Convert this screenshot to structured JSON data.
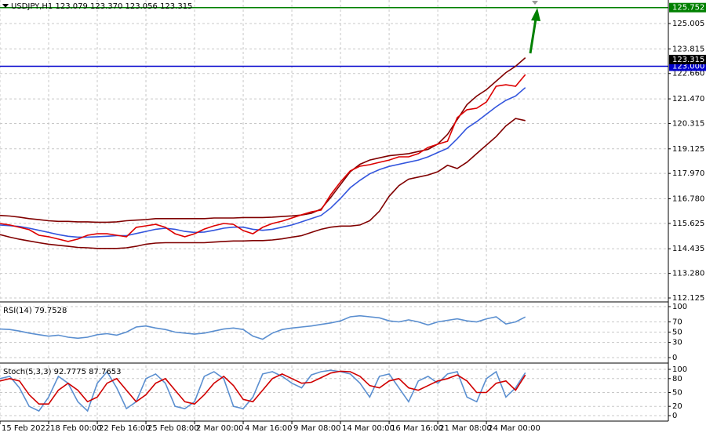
{
  "chart_data": [
    {
      "type": "line",
      "title": "USDJPY,H1 123.079 123.370 123.056 123.315",
      "x": [
        0,
        1,
        2,
        3,
        4,
        5,
        6,
        7,
        8,
        9,
        10,
        11,
        12,
        13,
        14,
        15,
        16,
        17,
        18,
        19,
        20,
        21,
        22,
        23,
        24,
        25,
        26,
        27,
        28,
        29,
        30,
        31,
        32,
        33,
        34,
        35,
        36,
        37,
        38,
        39,
        40,
        41,
        42,
        43,
        44,
        45,
        46,
        47,
        48,
        49,
        50,
        51,
        52,
        53,
        54
      ],
      "xlim": [
        0,
        68.7
      ],
      "xticks": [
        {
          "value": 0,
          "label": "15 Feb 2022"
        },
        {
          "value": 5,
          "label": "18 Feb 00:00"
        },
        {
          "value": 10,
          "label": "22 Feb 16:00"
        },
        {
          "value": 15,
          "label": "25 Feb 08:00"
        },
        {
          "value": 20,
          "label": "2 Mar 00:00"
        },
        {
          "value": 25,
          "label": "4 Mar 16:00"
        },
        {
          "value": 30,
          "label": "9 Mar 08:00"
        },
        {
          "value": 35,
          "label": "14 Mar 00:00"
        },
        {
          "value": 40,
          "label": "16 Mar 16:00"
        },
        {
          "value": 45,
          "label": "21 Mar 08:00"
        },
        {
          "value": 50,
          "label": "24 Mar 00:00"
        }
      ],
      "ylim": [
        112.015,
        126.109
      ],
      "yticks": [
        {
          "value": 112.125,
          "label": "112.125"
        },
        {
          "value": 113.28,
          "label": "113.280"
        },
        {
          "value": 114.435,
          "label": "114.435"
        },
        {
          "value": 115.625,
          "label": "115.625"
        },
        {
          "value": 116.78,
          "label": "116.780"
        },
        {
          "value": 117.97,
          "label": "117.970"
        },
        {
          "value": 119.125,
          "label": "119.125"
        },
        {
          "value": 120.315,
          "label": "120.315"
        },
        {
          "value": 121.47,
          "label": "121.470"
        },
        {
          "value": 122.66,
          "label": "122.660"
        },
        {
          "value": 123.815,
          "label": "123.815"
        },
        {
          "value": 125.005,
          "label": "125.005"
        }
      ],
      "grid": true,
      "levels": [
        {
          "value": 125.752,
          "label": "125.752",
          "color": "#008000"
        },
        {
          "value": 123.0,
          "label": "123.000",
          "color": "#0000cc"
        }
      ],
      "last_price": {
        "value": 123.315,
        "label": "123.315",
        "color": "#000000"
      },
      "series": [
        {
          "color": "#800000",
          "values": [
            116.0,
            115.97,
            115.92,
            115.85,
            115.8,
            115.75,
            115.72,
            115.72,
            115.7,
            115.7,
            115.68,
            115.68,
            115.7,
            115.75,
            115.78,
            115.8,
            115.85,
            115.85,
            115.85,
            115.85,
            115.85,
            115.85,
            115.88,
            115.88,
            115.88,
            115.9,
            115.9,
            115.9,
            115.92,
            115.95,
            115.98,
            116.02,
            116.1,
            116.3,
            116.85,
            117.45,
            118.05,
            118.4,
            118.6,
            118.7,
            118.8,
            118.85,
            118.9,
            119.0,
            119.1,
            119.35,
            119.8,
            120.5,
            121.2,
            121.6,
            121.9,
            122.3,
            122.7,
            123.0,
            123.4
          ]
        },
        {
          "color": "#800000",
          "values": [
            115.1,
            114.98,
            114.88,
            114.8,
            114.72,
            114.65,
            114.6,
            114.55,
            114.5,
            114.48,
            114.45,
            114.45,
            114.45,
            114.48,
            114.55,
            114.65,
            114.7,
            114.72,
            114.72,
            114.72,
            114.72,
            114.72,
            114.75,
            114.78,
            114.8,
            114.8,
            114.82,
            114.82,
            114.85,
            114.9,
            114.98,
            115.05,
            115.2,
            115.35,
            115.45,
            115.5,
            115.5,
            115.55,
            115.75,
            116.2,
            116.9,
            117.4,
            117.7,
            117.8,
            117.9,
            118.05,
            118.35,
            118.2,
            118.5,
            118.9,
            119.3,
            119.7,
            120.2,
            120.55,
            120.45
          ]
        },
        {
          "color": "#3355dd",
          "values": [
            115.55,
            115.52,
            115.48,
            115.4,
            115.3,
            115.2,
            115.1,
            115.02,
            114.98,
            114.98,
            115.0,
            115.02,
            115.05,
            115.05,
            115.15,
            115.25,
            115.35,
            115.4,
            115.35,
            115.25,
            115.2,
            115.22,
            115.3,
            115.4,
            115.45,
            115.45,
            115.35,
            115.3,
            115.35,
            115.45,
            115.55,
            115.7,
            115.85,
            116.0,
            116.35,
            116.8,
            117.3,
            117.65,
            117.95,
            118.15,
            118.3,
            118.4,
            118.5,
            118.6,
            118.75,
            118.95,
            119.15,
            119.6,
            120.1,
            120.4,
            120.75,
            121.1,
            121.4,
            121.6,
            122.0
          ]
        },
        {
          "color": "#dd0000",
          "values": [
            115.62,
            115.55,
            115.44,
            115.33,
            115.07,
            115.0,
            114.89,
            114.78,
            114.89,
            115.07,
            115.14,
            115.14,
            115.07,
            115.0,
            115.44,
            115.51,
            115.58,
            115.44,
            115.14,
            115.0,
            115.14,
            115.36,
            115.51,
            115.62,
            115.58,
            115.29,
            115.14,
            115.44,
            115.62,
            115.73,
            115.88,
            116.03,
            116.17,
            116.25,
            116.98,
            117.57,
            118.09,
            118.31,
            118.38,
            118.49,
            118.6,
            118.75,
            118.75,
            118.9,
            119.19,
            119.34,
            119.48,
            120.59,
            120.96,
            121.03,
            121.32,
            122.06,
            122.13,
            122.06,
            122.61
          ]
        }
      ]
    },
    {
      "type": "line",
      "title": "RSI(14) 79.7528",
      "x": [
        0,
        1,
        2,
        3,
        4,
        5,
        6,
        7,
        8,
        9,
        10,
        11,
        12,
        13,
        14,
        15,
        16,
        17,
        18,
        19,
        20,
        21,
        22,
        23,
        24,
        25,
        26,
        27,
        28,
        29,
        30,
        31,
        32,
        33,
        34,
        35,
        36,
        37,
        38,
        39,
        40,
        41,
        42,
        43,
        44,
        45,
        46,
        47,
        48,
        49,
        50,
        51,
        52,
        53,
        54
      ],
      "xlim": [
        0,
        68.7
      ],
      "ylim": [
        -4.6,
        104.6
      ],
      "yticks": [
        0,
        30,
        50,
        70,
        100
      ],
      "grid": true,
      "series": [
        {
          "color": "#5b8fd0",
          "values": [
            56,
            55,
            52,
            48,
            45,
            42,
            44,
            40,
            38,
            40,
            45,
            47,
            44,
            50,
            60,
            62,
            58,
            55,
            50,
            48,
            46,
            48,
            52,
            56,
            58,
            55,
            42,
            36,
            48,
            55,
            58,
            60,
            62,
            65,
            68,
            72,
            80,
            82,
            80,
            78,
            72,
            70,
            74,
            70,
            64,
            70,
            73,
            76,
            72,
            70,
            76,
            80,
            66,
            70,
            79.7528
          ]
        }
      ]
    },
    {
      "type": "line",
      "title": "Stoch(5,3,3) 92.7775 87.7653",
      "x": [
        0,
        1,
        2,
        3,
        4,
        5,
        6,
        7,
        8,
        9,
        10,
        11,
        12,
        13,
        14,
        15,
        16,
        17,
        18,
        19,
        20,
        21,
        22,
        23,
        24,
        25,
        26,
        27,
        28,
        29,
        30,
        31,
        32,
        33,
        34,
        35,
        36,
        37,
        38,
        39,
        40,
        41,
        42,
        43,
        44,
        45,
        46,
        47,
        48,
        49,
        50,
        51,
        52,
        53,
        54
      ],
      "xlim": [
        0,
        68.7
      ],
      "ylim": [
        -8.5,
        108.5
      ],
      "yticks": [
        0,
        20,
        50,
        80,
        100
      ],
      "grid": true,
      "series": [
        {
          "color": "#5b8fd0",
          "values": [
            80,
            85,
            60,
            20,
            10,
            40,
            85,
            70,
            30,
            10,
            70,
            95,
            60,
            15,
            30,
            80,
            90,
            70,
            20,
            15,
            30,
            85,
            95,
            80,
            20,
            15,
            40,
            90,
            95,
            85,
            70,
            60,
            88,
            95,
            98,
            95,
            90,
            70,
            40,
            85,
            90,
            60,
            30,
            75,
            85,
            70,
            90,
            95,
            40,
            30,
            80,
            95,
            40,
            60,
            92.7775
          ]
        },
        {
          "color": "#d00000",
          "values": [
            75,
            80,
            75,
            45,
            25,
            25,
            55,
            70,
            55,
            30,
            40,
            70,
            80,
            55,
            30,
            45,
            70,
            80,
            55,
            30,
            25,
            45,
            70,
            85,
            65,
            35,
            30,
            55,
            80,
            90,
            80,
            70,
            72,
            82,
            92,
            96,
            95,
            85,
            65,
            60,
            75,
            80,
            60,
            55,
            65,
            75,
            80,
            88,
            75,
            50,
            50,
            70,
            75,
            55,
            87.7653
          ]
        }
      ]
    }
  ]
}
